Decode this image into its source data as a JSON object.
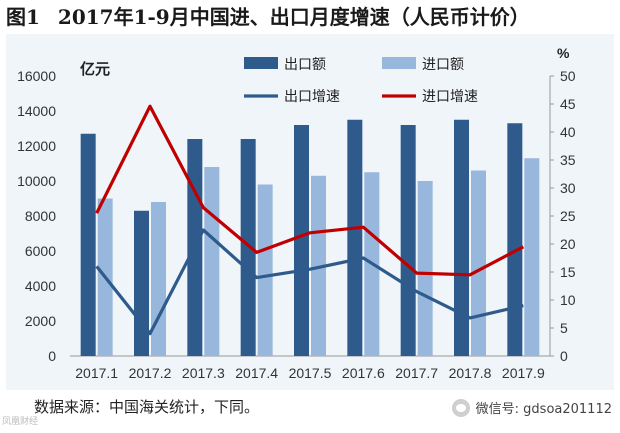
{
  "title": {
    "fig": "图1",
    "text": "2017年1-9月中国进、出口月度增速（人民币计价）"
  },
  "source": "数据来源：中国海关统计，下同。",
  "watermark": "微信号: gdsoa201112",
  "corner_mark": "凤凰财经",
  "chart_data": {
    "type": "bar",
    "categories": [
      "2017.1",
      "2017.2",
      "2017.3",
      "2017.4",
      "2017.5",
      "2017.6",
      "2017.7",
      "2017.8",
      "2017.9"
    ],
    "ylabel": "亿元",
    "y2label": "%",
    "ylim": [
      0,
      16000
    ],
    "y2lim": [
      0,
      50
    ],
    "yticks": [
      0,
      2000,
      4000,
      6000,
      8000,
      10000,
      12000,
      14000,
      16000
    ],
    "y2ticks": [
      0,
      5,
      10,
      15,
      20,
      25,
      30,
      35,
      40,
      45,
      50
    ],
    "grid": false,
    "legend": "top-center",
    "bars": [
      {
        "name": "出口额",
        "color": "#2e5b8c",
        "values": [
          12700,
          8300,
          12400,
          12400,
          13200,
          13500,
          13200,
          13500,
          13300
        ]
      },
      {
        "name": "进口额",
        "color": "#98b7dd",
        "values": [
          9000,
          8800,
          10800,
          9800,
          10300,
          10500,
          10000,
          10600,
          11300
        ]
      }
    ],
    "lines": [
      {
        "name": "出口增速",
        "color": "#2e5b8c",
        "values": [
          16,
          4,
          22.5,
          14,
          15.5,
          17.5,
          11.5,
          6.8,
          9
        ]
      },
      {
        "name": "进口增速",
        "color": "#c00000",
        "values": [
          25.5,
          44.6,
          26.5,
          18.5,
          22,
          23,
          14.8,
          14.5,
          19.5
        ]
      }
    ]
  }
}
